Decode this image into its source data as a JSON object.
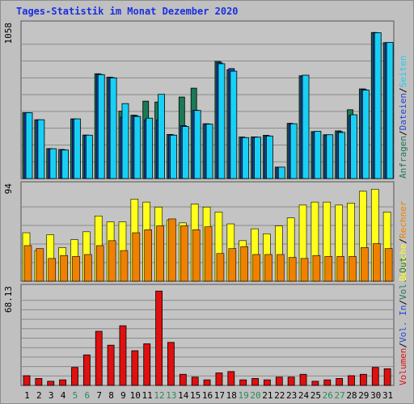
{
  "title": "Tages-Statistik im Monat Dezember 2020",
  "colors": {
    "background": "#c0c0c0",
    "plot_bg": "#c4c4c4",
    "grid": "#8a8a8a",
    "anfragen": "#1b7a55",
    "dateien": "#1f47d6",
    "seiten": "#18d0f5",
    "besuche": "#ffff1a",
    "rechner": "#f08000",
    "volumen": "#e01010",
    "vol_in": "#1f47d6",
    "vol_out": "#1b7a55",
    "weekend_label": "#2a8a5a",
    "weekday_label": "#000000"
  },
  "chart_data": [
    {
      "type": "bar",
      "panel": "top",
      "ymax_label": "1058",
      "ymax": 1058,
      "x": [
        1,
        2,
        3,
        4,
        5,
        6,
        7,
        8,
        9,
        10,
        11,
        12,
        13,
        14,
        15,
        16,
        17,
        18,
        19,
        20,
        21,
        22,
        23,
        24,
        25,
        26,
        27,
        28,
        29,
        30,
        31
      ],
      "series": [
        {
          "name": "Anfragen",
          "values": [
            461,
            412,
            210,
            204,
            418,
            305,
            734,
            710,
            472,
            444,
            542,
            536,
            309,
            571,
            633,
            384,
            821,
            762,
            291,
            292,
            303,
            80,
            387,
            720,
            329,
            307,
            334,
            482,
            628,
            1023,
            952
          ]
        },
        {
          "name": "Dateien",
          "values": [
            460,
            411,
            206,
            201,
            416,
            302,
            730,
            707,
            430,
            440,
            411,
            410,
            306,
            371,
            478,
            382,
            811,
            770,
            287,
            290,
            299,
            76,
            382,
            717,
            328,
            304,
            328,
            441,
            624,
            1020,
            951
          ]
        },
        {
          "name": "Seiten",
          "values": [
            461,
            412,
            209,
            200,
            418,
            304,
            728,
            705,
            525,
            435,
            423,
            590,
            304,
            365,
            477,
            381,
            804,
            752,
            287,
            290,
            298,
            80,
            384,
            724,
            331,
            307,
            323,
            447,
            620,
            1021,
            953
          ]
        }
      ],
      "right_labels": [
        "Anfragen",
        "Dateien",
        "Seiten"
      ]
    },
    {
      "type": "bar",
      "panel": "middle",
      "ymax_label": "94",
      "ymax": 94,
      "x": [
        1,
        2,
        3,
        4,
        5,
        6,
        7,
        8,
        9,
        10,
        11,
        12,
        13,
        14,
        15,
        16,
        17,
        18,
        19,
        20,
        21,
        22,
        23,
        24,
        25,
        26,
        27,
        28,
        29,
        30,
        31
      ],
      "series": [
        {
          "name": "Besuche",
          "values": [
            49,
            31,
            47,
            34,
            42,
            50,
            66,
            60,
            60,
            83,
            80,
            75,
            62,
            59,
            78,
            75,
            70,
            58,
            41,
            53,
            48,
            56,
            64,
            77,
            80,
            80,
            77,
            79,
            91,
            93,
            70
          ]
        },
        {
          "name": "Rechner",
          "values": [
            36,
            33,
            23,
            26,
            25,
            27,
            36,
            41,
            31,
            49,
            52,
            56,
            63,
            56,
            52,
            55,
            28,
            33,
            35,
            27,
            27,
            27,
            24,
            23,
            26,
            25,
            25,
            25,
            34,
            38,
            33
          ]
        }
      ],
      "right_labels": [
        "Besuche",
        "Rechner"
      ]
    },
    {
      "type": "bar",
      "panel": "bottom",
      "ymax_label": "68.13",
      "ymax": 68.13,
      "x": [
        1,
        2,
        3,
        4,
        5,
        6,
        7,
        8,
        9,
        10,
        11,
        12,
        13,
        14,
        15,
        16,
        17,
        18,
        19,
        20,
        21,
        22,
        23,
        24,
        25,
        26,
        27,
        28,
        29,
        30,
        31
      ],
      "series": [
        {
          "name": "Volumen",
          "values": [
            7,
            5,
            3,
            4,
            13,
            22,
            39,
            29,
            43,
            25,
            30,
            68,
            31,
            8,
            6,
            4,
            9,
            10,
            4,
            5,
            4,
            6,
            6,
            8,
            3,
            4,
            5,
            7,
            8,
            13,
            12
          ]
        }
      ],
      "right_labels": [
        "Volumen",
        "Vol. In",
        "Vol. Out"
      ]
    }
  ],
  "x_tick_labels": [
    "1",
    "2",
    "3",
    "4",
    "5",
    "6",
    "7",
    "8",
    "9",
    "10",
    "11",
    "12",
    "13",
    "14",
    "15",
    "16",
    "17",
    "18",
    "19",
    "20",
    "21",
    "22",
    "23",
    "24",
    "25",
    "26",
    "27",
    "28",
    "29",
    "30",
    "31"
  ],
  "weekend_days": [
    5,
    6,
    12,
    13,
    19,
    20,
    26,
    27
  ]
}
